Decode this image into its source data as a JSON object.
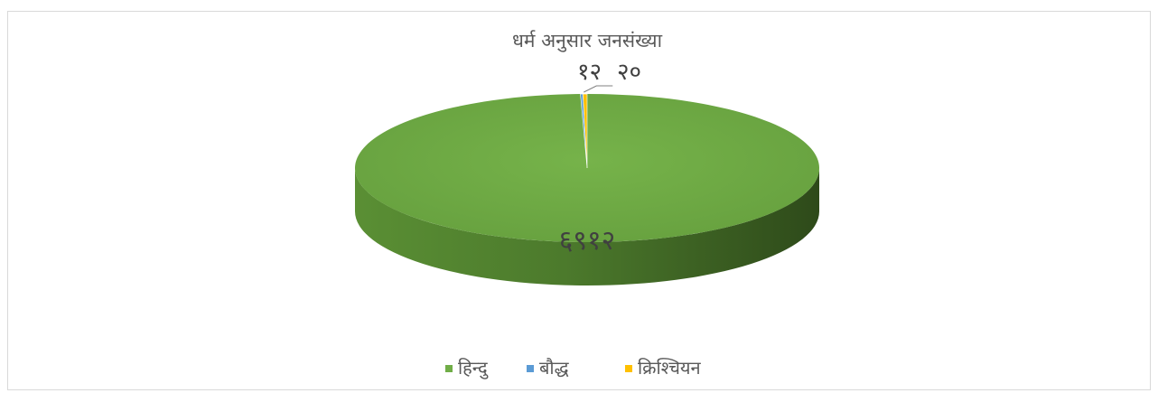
{
  "chart_data": {
    "type": "pie",
    "title": "धर्म अनुसार जनसंख्या",
    "categories": [
      "हिन्दु",
      "बौद्ध",
      "क्रिश्चियन"
    ],
    "values": [
      6912,
      12,
      20
    ],
    "value_labels": [
      "६९१२",
      "१२",
      "२०"
    ],
    "colors": [
      "#70ad47",
      "#5b9bd5",
      "#ffc000"
    ],
    "legend_position": "bottom",
    "style": "3d"
  }
}
